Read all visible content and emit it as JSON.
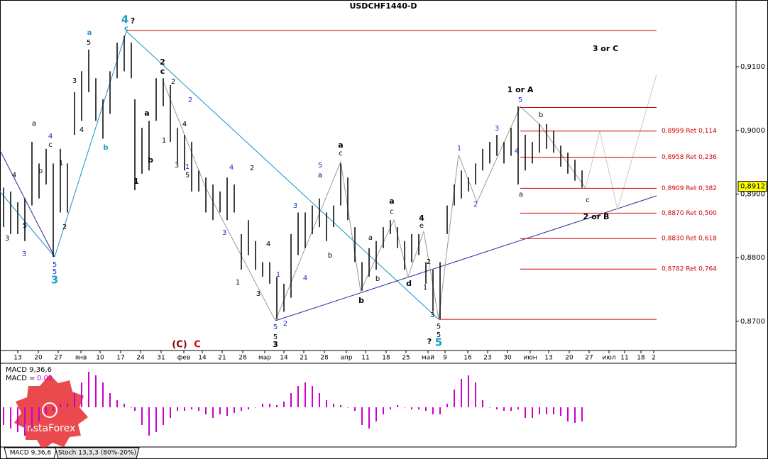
{
  "chart_data": {
    "type": "ohlc",
    "title": "USDCHF1440-D",
    "color": "#000000",
    "x": [
      1,
      3,
      5,
      7,
      9,
      11,
      13,
      15,
      17,
      19,
      21,
      23,
      25,
      27,
      29,
      31,
      33,
      35,
      37,
      38,
      40,
      42,
      44,
      46,
      48,
      50,
      52,
      54,
      56,
      58,
      60,
      62,
      64,
      66,
      68,
      70,
      72,
      74,
      76,
      78,
      80,
      82,
      84,
      86,
      88,
      90,
      92,
      94,
      96,
      98,
      100,
      102,
      104,
      106,
      108,
      110,
      112,
      114,
      116,
      118,
      120,
      122,
      124,
      126,
      128,
      130,
      132,
      134,
      136,
      138,
      140,
      142,
      144,
      146,
      148,
      150,
      152,
      154,
      156,
      158,
      160,
      162,
      164
    ],
    "high": [
      0.891,
      0.8904,
      0.8887,
      0.8893,
      0.8982,
      0.8948,
      0.8971,
      0.8948,
      0.8971,
      0.8948,
      0.906,
      0.9093,
      0.9127,
      0.9082,
      0.9049,
      0.9093,
      0.9138,
      0.9149,
      0.9138,
      0.9049,
      0.9004,
      0.9015,
      0.9082,
      0.9082,
      0.9071,
      0.9004,
      0.8993,
      0.8982,
      0.8937,
      0.8926,
      0.8915,
      0.8904,
      0.8926,
      0.8915,
      0.8837,
      0.8859,
      0.8826,
      0.8793,
      0.8793,
      0.877,
      0.8759,
      0.8837,
      0.8871,
      0.8871,
      0.8882,
      0.8893,
      0.8871,
      0.8882,
      0.8948,
      0.8926,
      0.8848,
      0.8793,
      0.8815,
      0.8826,
      0.8848,
      0.8859,
      0.8848,
      0.8826,
      0.8837,
      0.8837,
      0.8793,
      0.8781,
      0.8793,
      0.8882,
      0.8915,
      0.8937,
      0.8926,
      0.8948,
      0.8971,
      0.8982,
      0.8993,
      0.8982,
      0.9004,
      0.9038,
      0.8993,
      0.8982,
      0.901,
      0.901,
      0.8999,
      0.8976,
      0.8965,
      0.8954,
      0.8937
    ],
    "low": [
      0.8848,
      0.8837,
      0.8837,
      0.8826,
      0.8882,
      0.8893,
      0.8915,
      0.8801,
      0.8871,
      0.8871,
      0.8993,
      0.9015,
      0.906,
      0.9015,
      0.8987,
      0.9026,
      0.9082,
      0.9093,
      0.9082,
      0.8906,
      0.8932,
      0.8937,
      0.9015,
      0.9038,
      0.8982,
      0.8948,
      0.8937,
      0.8904,
      0.8904,
      0.8871,
      0.8859,
      0.8871,
      0.8859,
      0.8871,
      0.8781,
      0.8804,
      0.8781,
      0.877,
      0.8759,
      0.8703,
      0.8715,
      0.8737,
      0.8804,
      0.8815,
      0.8837,
      0.8848,
      0.8826,
      0.8848,
      0.8882,
      0.8859,
      0.8793,
      0.8748,
      0.877,
      0.8781,
      0.8815,
      0.8837,
      0.8815,
      0.8781,
      0.8793,
      0.8804,
      0.8759,
      0.8715,
      0.8703,
      0.8837,
      0.8882,
      0.8893,
      0.8904,
      0.8915,
      0.8937,
      0.8948,
      0.896,
      0.8948,
      0.896,
      0.8915,
      0.8937,
      0.8948,
      0.8965,
      0.8971,
      0.8965,
      0.8943,
      0.8932,
      0.8921,
      0.891
    ],
    "xlim": [
      0,
      185
    ],
    "ylim": [
      0.8654,
      0.9205
    ],
    "yticks": [
      {
        "value": 0.87,
        "label": "0,8700"
      },
      {
        "value": 0.88,
        "label": "0,8800"
      },
      {
        "value": 0.89,
        "label": "0,8900"
      },
      {
        "value": 0.9,
        "label": "0,9000"
      },
      {
        "value": 0.91,
        "label": "0,9100"
      }
    ],
    "xticks": [
      {
        "value": 5,
        "label": "13"
      },
      {
        "value": 10.8,
        "label": "20"
      },
      {
        "value": 16.4,
        "label": "27"
      },
      {
        "value": 22.8,
        "label": "янв"
      },
      {
        "value": 28.2,
        "label": "10"
      },
      {
        "value": 34,
        "label": "17"
      },
      {
        "value": 39.6,
        "label": "24"
      },
      {
        "value": 45.4,
        "label": "31"
      },
      {
        "value": 51.8,
        "label": "фев"
      },
      {
        "value": 57,
        "label": "14"
      },
      {
        "value": 62.6,
        "label": "21"
      },
      {
        "value": 68.4,
        "label": "28"
      },
      {
        "value": 74.6,
        "label": "мар"
      },
      {
        "value": 80,
        "label": "14"
      },
      {
        "value": 85.6,
        "label": "21"
      },
      {
        "value": 91.4,
        "label": "28"
      },
      {
        "value": 97.6,
        "label": "апр"
      },
      {
        "value": 103,
        "label": "11"
      },
      {
        "value": 108.8,
        "label": "18"
      },
      {
        "value": 114.4,
        "label": "25"
      },
      {
        "value": 120.6,
        "label": "май"
      },
      {
        "value": 125.4,
        "label": "9"
      },
      {
        "value": 131.8,
        "label": "16"
      },
      {
        "value": 137.4,
        "label": "23"
      },
      {
        "value": 143,
        "label": "30"
      },
      {
        "value": 149.4,
        "label": "июн"
      },
      {
        "value": 154.6,
        "label": "13"
      },
      {
        "value": 160.4,
        "label": "20"
      },
      {
        "value": 166,
        "label": "27"
      },
      {
        "value": 171.6,
        "label": "июл"
      },
      {
        "value": 176,
        "label": "11"
      },
      {
        "value": 180.6,
        "label": "18"
      },
      {
        "value": 184.2,
        "label": "2"
      }
    ],
    "last_price": {
      "value": 0.8912,
      "label": "0,8912"
    },
    "levels": [
      {
        "value": 0.8999,
        "label": "0,8999 Ret 0,114"
      },
      {
        "value": 0.8958,
        "label": "0,8958 Ret 0,236"
      },
      {
        "value": 0.8909,
        "label": "0,8909 Ret 0,382"
      },
      {
        "value": 0.887,
        "label": "0,8870 Ret 0,500"
      },
      {
        "value": 0.883,
        "label": "0,8830 Ret 0,618"
      },
      {
        "value": 0.8782,
        "label": "0,8782 Ret 0,764"
      }
    ],
    "level_color": "#d00000",
    "hlines": [
      0.9157,
      0.9036,
      0.8703
    ],
    "wave_labels": [
      "4",
      "?",
      "c",
      "a",
      "5",
      "3",
      "4",
      "b",
      "4",
      "a",
      "c",
      "b",
      "1",
      "2",
      "4",
      "5",
      "3",
      "3",
      "5",
      "5",
      "3",
      "2",
      "c",
      "2",
      "a",
      "4",
      "b",
      "1",
      "3",
      "2",
      "5",
      "1",
      "1",
      "4",
      "2",
      "3",
      "4",
      "1",
      "3",
      "1",
      "4",
      "2",
      "5",
      "5",
      "3",
      "3",
      "5",
      "a",
      "a",
      "c",
      "b",
      "b",
      "b",
      "a",
      "a",
      "c",
      "4",
      "e",
      "d",
      "2",
      "1",
      "3",
      "5",
      "5",
      "?",
      "5",
      "1",
      "2",
      "3",
      "4",
      "a",
      "5",
      "1 or A",
      "b",
      "c",
      "3 or C",
      "2 or B",
      "(C)",
      "C"
    ],
    "macd": {
      "name": "MACD 9,36,6",
      "readout_name": "MACD =",
      "readout_value": {
        "value": 0,
        "label": "0.00"
      },
      "color": "#cc00cc",
      "ylim": [
        -0.00216,
        0.00236
      ],
      "values": [
        -0.001,
        -0.0012,
        -0.0014,
        -0.0016,
        -0.0012,
        -0.0008,
        -0.0004,
        -0.0002,
        0.0002,
        0.0002,
        0.0008,
        0.0014,
        0.002,
        0.0018,
        0.0014,
        0.0008,
        0.0004,
        0.0002,
        0,
        -0.0002,
        -0.001,
        -0.0016,
        -0.0014,
        -0.001,
        -0.0006,
        -0.0002,
        -0.0002,
        -0.00012,
        -0.0002,
        -0.0004,
        -0.0006,
        -0.0004,
        -0.00048,
        -0.00032,
        -0.0002,
        -0.00012,
        0,
        0.0002,
        0.0002,
        0.00012,
        0.00032,
        0.0008,
        0.0012,
        0.0014,
        0.0012,
        0.0008,
        0.0004,
        0.0002,
        0.00012,
        0,
        -0.0002,
        -0.001,
        -0.0012,
        -0.0008,
        -0.0004,
        -0.00012,
        0.00012,
        0,
        -0.00012,
        -0.00012,
        -0.0002,
        -0.0004,
        -0.0004,
        0.0002,
        0.001,
        0.0016,
        0.0018,
        0.0014,
        0.0004,
        0,
        -0.00012,
        -0.0002,
        -0.0002,
        -0.00012,
        -0.0006,
        -0.0006,
        -0.0004,
        -0.0004,
        -0.0004,
        -0.00048,
        -0.0008,
        -0.00088,
        -0.0008
      ]
    },
    "tabs": [
      "MACD 9,36,6",
      "Stoch 13,3,3 (80%-20%)"
    ],
    "brand": "InstaForex"
  }
}
